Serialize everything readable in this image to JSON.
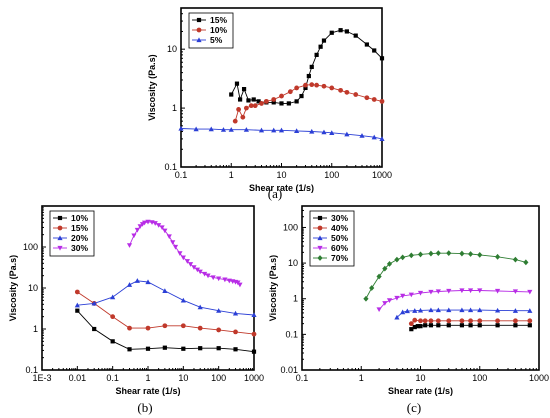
{
  "figure": {
    "panel_labels": [
      "(a)",
      "(b)",
      "(c)"
    ]
  },
  "chart_data": [
    {
      "type": "line",
      "panel": "(a)",
      "xlabel": "Shear rate (1/s)",
      "ylabel": "Viscosity (Pa.s)",
      "x_scale": "log",
      "y_scale": "log",
      "xlim": [
        0.1,
        1000
      ],
      "ylim": [
        0.1,
        50
      ],
      "x_ticks": [
        "0.1",
        "1",
        "10",
        "100",
        "1000"
      ],
      "y_ticks": [
        "0.1",
        "1",
        "10"
      ],
      "legend_position": "top-left",
      "series": [
        {
          "name": "15%",
          "color": "#000000",
          "marker": "square",
          "x": [
            1,
            1.3,
            1.5,
            1.8,
            2.2,
            2.8,
            3.5,
            5,
            7,
            10,
            14,
            20,
            25,
            30,
            35,
            40,
            50,
            60,
            70,
            100,
            150,
            200,
            300,
            500,
            700,
            1000
          ],
          "y": [
            1.7,
            2.6,
            1.4,
            2.1,
            1.35,
            1.4,
            1.3,
            1.25,
            1.25,
            1.2,
            1.2,
            1.3,
            1.6,
            2.2,
            3.5,
            5,
            8,
            11,
            14,
            19,
            21,
            20,
            17,
            12,
            9.5,
            7
          ]
        },
        {
          "name": "10%",
          "color": "#c0392b",
          "marker": "circle",
          "x": [
            1.2,
            1.4,
            1.7,
            2,
            2.5,
            3,
            4,
            5,
            7,
            10,
            15,
            20,
            30,
            40,
            50,
            70,
            100,
            150,
            200,
            300,
            500,
            700,
            1000
          ],
          "y": [
            0.6,
            0.95,
            0.7,
            1.0,
            1.1,
            1.1,
            1.2,
            1.3,
            1.4,
            1.6,
            1.9,
            2.2,
            2.45,
            2.5,
            2.45,
            2.35,
            2.2,
            2.0,
            1.85,
            1.7,
            1.5,
            1.4,
            1.3
          ]
        },
        {
          "name": "5%",
          "color": "#2b3fd6",
          "marker": "triangle",
          "x": [
            0.1,
            0.2,
            0.4,
            0.7,
            1,
            2,
            4,
            7,
            10,
            20,
            40,
            70,
            100,
            200,
            400,
            700,
            1000
          ],
          "y": [
            0.45,
            0.44,
            0.44,
            0.43,
            0.43,
            0.43,
            0.42,
            0.42,
            0.42,
            0.41,
            0.4,
            0.39,
            0.38,
            0.36,
            0.34,
            0.32,
            0.3
          ]
        }
      ]
    },
    {
      "type": "line",
      "panel": "(b)",
      "xlabel": "Shear rate (1/s)",
      "ylabel": "Viscosity (Pa.s)",
      "x_scale": "log",
      "y_scale": "log",
      "xlim": [
        0.001,
        1000
      ],
      "ylim": [
        0.1,
        1000
      ],
      "x_ticks": [
        "1E-3",
        "0.01",
        "0.1",
        "1",
        "10",
        "100",
        "1000"
      ],
      "y_ticks": [
        "0.1",
        "1",
        "10",
        "100"
      ],
      "legend_position": "top-left",
      "series": [
        {
          "name": "10%",
          "color": "#000000",
          "marker": "square",
          "x": [
            0.01,
            0.03,
            0.1,
            0.3,
            1,
            3,
            10,
            30,
            100,
            300,
            1000
          ],
          "y": [
            2.8,
            1.0,
            0.5,
            0.32,
            0.33,
            0.35,
            0.33,
            0.34,
            0.34,
            0.32,
            0.28
          ]
        },
        {
          "name": "15%",
          "color": "#c0392b",
          "marker": "circle",
          "x": [
            0.01,
            0.03,
            0.1,
            0.3,
            1,
            3,
            10,
            30,
            100,
            300,
            1000
          ],
          "y": [
            8,
            4.2,
            2.0,
            1.05,
            1.05,
            1.2,
            1.2,
            1.05,
            0.95,
            0.85,
            0.75
          ]
        },
        {
          "name": "20%",
          "color": "#2b3fd6",
          "marker": "triangle",
          "x": [
            0.01,
            0.03,
            0.1,
            0.3,
            0.5,
            1,
            3,
            10,
            30,
            100,
            300,
            1000
          ],
          "y": [
            3.8,
            4.2,
            6,
            12,
            15,
            14,
            8.5,
            5,
            3.4,
            2.8,
            2.4,
            2.2
          ]
        },
        {
          "name": "30%",
          "color": "#b82de6",
          "marker": "triangle-down",
          "x": [
            0.3,
            0.4,
            0.5,
            0.6,
            0.7,
            0.8,
            1,
            1.3,
            1.6,
            2,
            2.5,
            3,
            4,
            5,
            6,
            8,
            10,
            13,
            16,
            20,
            25,
            30,
            40,
            50,
            70,
            100,
            150,
            200,
            250,
            300,
            350,
            400
          ],
          "y": [
            110,
            190,
            260,
            320,
            360,
            390,
            410,
            400,
            380,
            340,
            300,
            250,
            180,
            130,
            100,
            70,
            55,
            45,
            38,
            32,
            28,
            25,
            22,
            20,
            18,
            17,
            16,
            15,
            14.5,
            14,
            13.5,
            12
          ]
        }
      ]
    },
    {
      "type": "line",
      "panel": "(c)",
      "xlabel": "Shear rate (1/s)",
      "ylabel": "Viscosity (Pa.s)",
      "x_scale": "log",
      "y_scale": "log",
      "xlim": [
        0.1,
        1000
      ],
      "ylim": [
        0.01,
        400
      ],
      "x_ticks": [
        "0.1",
        "1",
        "10",
        "100",
        "1000"
      ],
      "y_ticks": [
        "0.01",
        "0.1",
        "1",
        "10",
        "100"
      ],
      "legend_position": "top-left",
      "series": [
        {
          "name": "30%",
          "color": "#000000",
          "marker": "square",
          "x": [
            7,
            8,
            9,
            10,
            12,
            15,
            20,
            30,
            50,
            70,
            100,
            200,
            400,
            700
          ],
          "y": [
            0.14,
            0.16,
            0.17,
            0.17,
            0.18,
            0.18,
            0.18,
            0.18,
            0.18,
            0.18,
            0.18,
            0.18,
            0.18,
            0.18
          ]
        },
        {
          "name": "40%",
          "color": "#c0392b",
          "marker": "circle",
          "x": [
            7,
            8,
            10,
            12,
            15,
            20,
            30,
            50,
            70,
            100,
            200,
            400,
            700
          ],
          "y": [
            0.2,
            0.25,
            0.24,
            0.24,
            0.24,
            0.24,
            0.24,
            0.24,
            0.24,
            0.24,
            0.24,
            0.24,
            0.24
          ]
        },
        {
          "name": "50%",
          "color": "#2b3fd6",
          "marker": "triangle",
          "x": [
            4,
            5,
            6,
            8,
            10,
            15,
            20,
            30,
            50,
            70,
            100,
            200,
            400,
            700
          ],
          "y": [
            0.3,
            0.42,
            0.45,
            0.46,
            0.47,
            0.48,
            0.48,
            0.48,
            0.48,
            0.48,
            0.48,
            0.47,
            0.46,
            0.46
          ]
        },
        {
          "name": "60%",
          "color": "#b82de6",
          "marker": "triangle-down",
          "x": [
            2,
            2.5,
            3,
            4,
            5,
            7,
            10,
            15,
            20,
            30,
            50,
            70,
            100,
            200,
            400,
            700
          ],
          "y": [
            0.5,
            0.75,
            0.9,
            1.05,
            1.2,
            1.3,
            1.45,
            1.55,
            1.6,
            1.65,
            1.7,
            1.7,
            1.7,
            1.65,
            1.6,
            1.55
          ]
        },
        {
          "name": "70%",
          "color": "#2e7d32",
          "marker": "diamond",
          "x": [
            1.2,
            1.5,
            2,
            2.5,
            3,
            4,
            5,
            7,
            10,
            15,
            20,
            30,
            50,
            70,
            100,
            200,
            400,
            600
          ],
          "y": [
            1.0,
            2.0,
            4.2,
            7,
            9.5,
            12.5,
            14.5,
            16.5,
            17.5,
            18.5,
            19,
            19,
            18.5,
            18,
            17,
            15,
            12.5,
            10.5
          ]
        }
      ]
    }
  ]
}
